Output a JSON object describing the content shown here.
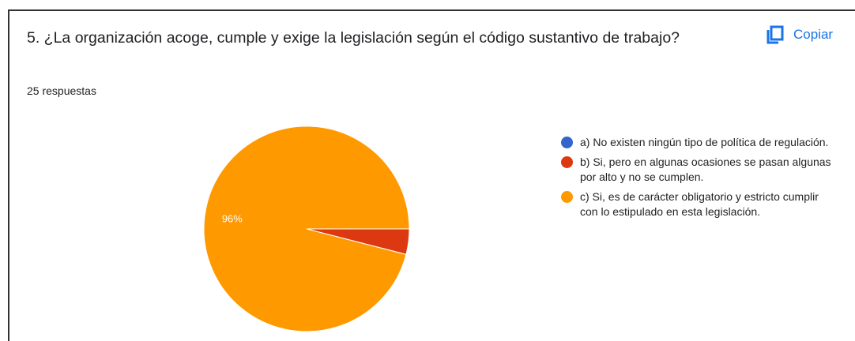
{
  "header": {
    "title": "5. ¿La organización acoge, cumple y exige la legislación según el código sustantivo de trabajo?",
    "copy_button": "Copiar",
    "responses": "25 respuestas"
  },
  "chart_data": {
    "type": "pie",
    "categories": [
      "a) No existen ningún tipo de política de regulación.",
      "b) Si, pero en algunas ocasiones se pasan algunas por alto y no se cumplen.",
      "c) Si, es de carácter obligatorio y estricto cumplir con lo estipulado en esta legislación."
    ],
    "values": [
      0,
      4,
      96
    ],
    "value_labels": [
      null,
      null,
      "96%"
    ],
    "colors": [
      "#3366cc",
      "#dc3912",
      "#ff9900"
    ],
    "legend": "right"
  }
}
